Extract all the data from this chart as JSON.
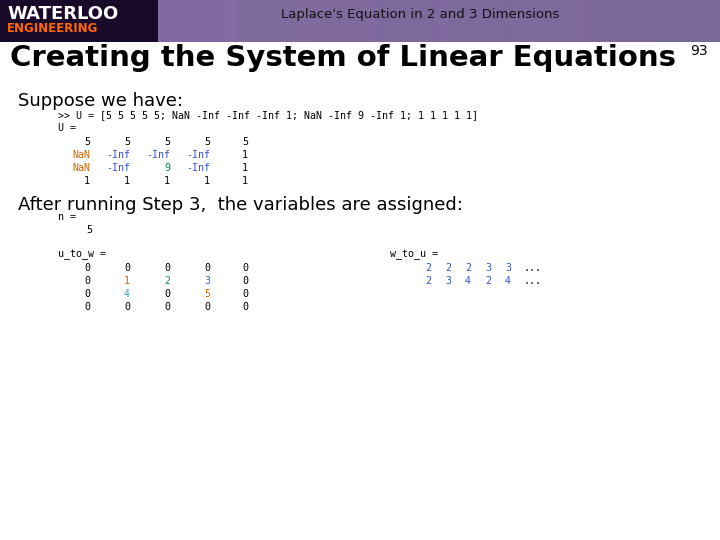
{
  "title_top": "Laplace's Equation in 2 and 3 Dimensions",
  "slide_number": "93",
  "heading": "Creating the System of Linear Equations",
  "bg_color": "#ffffff",
  "suppose_text": "Suppose we have:",
  "code_line1": ">> U = [5 5 5 5 5; NaN -Inf -Inf -Inf 1; NaN -Inf 9 -Inf 1; 1 1 1 1 1]",
  "code_line2": "U =",
  "matrix_rows": [
    [
      [
        "5",
        "5",
        "5",
        "5",
        "5"
      ],
      [
        "#000000",
        "#000000",
        "#000000",
        "#000000",
        "#000000"
      ]
    ],
    [
      [
        "NaN",
        "-Inf",
        "-Inf",
        "-Inf",
        "1"
      ],
      [
        "#cc6600",
        "#3355cc",
        "#3355cc",
        "#3355cc",
        "#000000"
      ]
    ],
    [
      [
        "NaN",
        "-Inf",
        "9",
        "-Inf",
        "1"
      ],
      [
        "#cc6600",
        "#3355cc",
        "#009933",
        "#3355cc",
        "#000000"
      ]
    ],
    [
      [
        "1",
        "1",
        "1",
        "1",
        "1"
      ],
      [
        "#000000",
        "#000000",
        "#000000",
        "#000000",
        "#000000"
      ]
    ]
  ],
  "after_text": "After running Step 3,  the variables are assigned:",
  "u_to_w_matrix": [
    [
      [
        "0",
        "0",
        "0",
        "0",
        "0"
      ],
      [
        "#000000",
        "#000000",
        "#000000",
        "#000000",
        "#000000"
      ]
    ],
    [
      [
        "0",
        "1",
        "2",
        "3",
        "0"
      ],
      [
        "#000000",
        "#cc6600",
        "#009933",
        "#3355cc",
        "#000000"
      ]
    ],
    [
      [
        "0",
        "4",
        "0",
        "5",
        "0"
      ],
      [
        "#000000",
        "#33aacc",
        "#000000",
        "#cc6600",
        "#000000"
      ]
    ],
    [
      [
        "0",
        "0",
        "0",
        "0",
        "0"
      ],
      [
        "#000000",
        "#000000",
        "#000000",
        "#000000",
        "#000000"
      ]
    ]
  ],
  "w_to_u_row1": [
    [
      "2",
      "2",
      "2",
      "3",
      "3",
      "..."
    ],
    [
      "#3355cc",
      "#3355cc",
      "#3355cc",
      "#3355cc",
      "#3355cc",
      "#000000"
    ]
  ],
  "w_to_u_row2": [
    [
      "2",
      "3",
      "4",
      "2",
      "4",
      "..."
    ],
    [
      "#3355cc",
      "#3355cc",
      "#3355cc",
      "#3355cc",
      "#3355cc",
      "#000000"
    ]
  ]
}
